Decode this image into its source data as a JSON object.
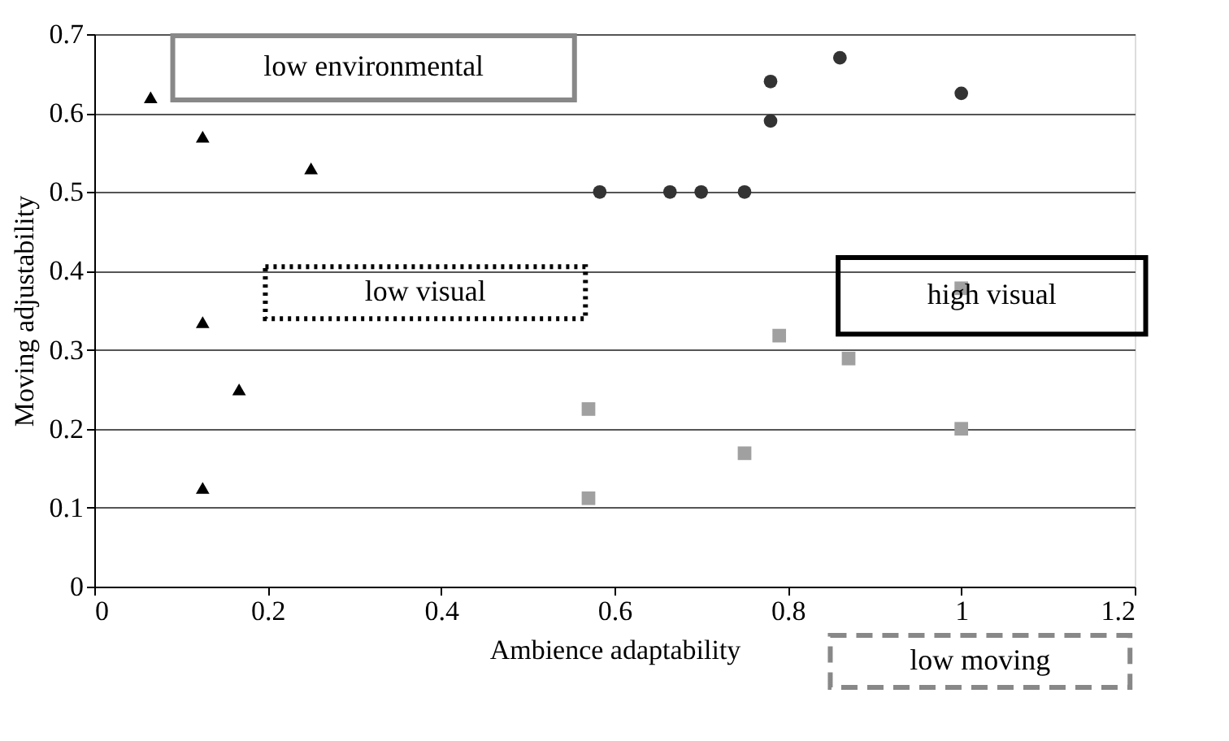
{
  "chart_data": {
    "type": "scatter",
    "xlabel": "Ambience adaptability",
    "ylabel": "Moving adjustability",
    "xlim": [
      0,
      1.2
    ],
    "xticks": [
      0,
      0.2,
      0.4,
      0.6,
      0.8,
      1,
      1.2
    ],
    "ylim": [
      0,
      0.7
    ],
    "yticks": [
      0,
      0.1,
      0.2,
      0.3,
      0.4,
      0.5,
      0.6,
      0.7
    ],
    "grid": "y",
    "series": [
      {
        "color": "#000000",
        "marker": "triangle",
        "x": [
          0.065,
          0.125,
          0.25,
          0.125,
          0.167,
          0.125
        ],
        "values": [
          0.62,
          0.57,
          0.53,
          0.335,
          0.25,
          0.125
        ]
      },
      {
        "color": "#333333",
        "marker": "circle",
        "x": [
          0.583,
          0.664,
          0.7,
          0.75,
          0.78,
          0.78,
          0.86,
          1.0
        ],
        "values": [
          0.5,
          0.5,
          0.5,
          0.5,
          0.59,
          0.64,
          0.67,
          0.625
        ]
      },
      {
        "color": "#a0a0a0",
        "marker": "square",
        "x": [
          1.0,
          0.79,
          0.87,
          0.75,
          1.0,
          0.57,
          0.57
        ],
        "values": [
          0.378,
          0.318,
          0.289,
          0.169,
          0.2,
          0.225,
          0.112
        ]
      }
    ],
    "annotations": [
      "low environmental",
      "low visual",
      "high visual",
      "low moving"
    ]
  }
}
